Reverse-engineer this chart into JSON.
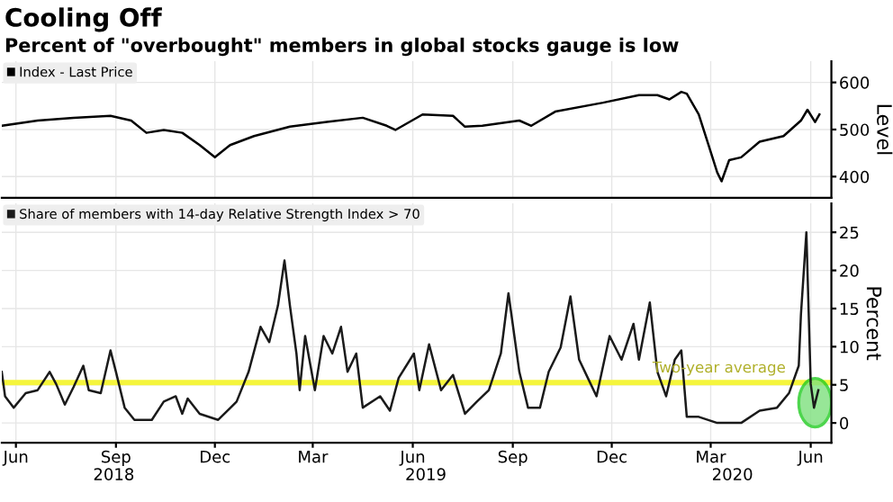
{
  "chart_data": [
    {
      "type": "line",
      "title": "Cooling Off",
      "subtitle": "Percent of \"overbought\" members in global stocks gauge is low",
      "ylabel": "Level",
      "legend": "top left",
      "grid": true,
      "tick_labels": "y",
      "line_style": "solid",
      "xlim": [
        "2018-05-19",
        "2020-06-20"
      ],
      "ylim": [
        355,
        645
      ],
      "yticks": [
        400,
        500,
        600
      ],
      "series": [
        {
          "name": "Index - Last Price",
          "color": "#000000",
          "x": [
            "2018-05-19",
            "2018-06-21",
            "2018-07-24",
            "2018-08-27",
            "2018-09-15",
            "2018-09-29",
            "2018-10-15",
            "2018-11-01",
            "2018-11-17",
            "2018-12-01",
            "2018-12-15",
            "2019-01-06",
            "2019-02-08",
            "2019-03-14",
            "2019-04-16",
            "2019-05-08",
            "2019-05-16",
            "2019-06-10",
            "2019-07-08",
            "2019-07-19",
            "2019-08-04",
            "2019-09-07",
            "2019-09-18",
            "2019-10-10",
            "2019-11-23",
            "2019-12-26",
            "2020-01-12",
            "2020-01-23",
            "2020-02-03",
            "2020-02-08",
            "2020-02-19",
            "2020-02-28",
            "2020-03-07",
            "2020-03-11",
            "2020-03-18",
            "2020-03-29",
            "2020-04-15",
            "2020-05-07",
            "2020-05-23",
            "2020-05-29",
            "2020-06-05",
            "2020-06-09"
          ],
          "values": [
            508,
            519,
            525,
            529,
            519,
            493,
            499,
            493,
            467,
            441,
            467,
            486,
            506,
            516,
            525,
            508,
            499,
            532,
            529,
            506,
            508,
            519,
            508,
            538,
            557,
            573,
            573,
            564,
            580,
            576,
            532,
            467,
            409,
            390,
            435,
            441,
            474,
            486,
            519,
            542,
            516,
            532
          ]
        }
      ]
    },
    {
      "type": "line",
      "ylabel": "Percent",
      "legend": "top left",
      "grid": true,
      "line_style": "solid",
      "xlim": [
        "2018-05-19",
        "2020-06-20"
      ],
      "ylim": [
        -2.6,
        28.8
      ],
      "yticks": [
        0,
        5,
        10,
        15,
        20,
        25
      ],
      "xticks": [
        {
          "value": "2018-06-01",
          "label": "Jun"
        },
        {
          "value": "2018-09-01",
          "label": "Sep"
        },
        {
          "value": "2018-12-01",
          "label": "Dec"
        },
        {
          "value": "2019-03-01",
          "label": "Mar"
        },
        {
          "value": "2019-06-01",
          "label": "Jun"
        },
        {
          "value": "2019-09-01",
          "label": "Sep"
        },
        {
          "value": "2019-12-01",
          "label": "Dec"
        },
        {
          "value": "2020-03-01",
          "label": "Mar"
        },
        {
          "value": "2020-06-01",
          "label": "Jun"
        }
      ],
      "x2lim": [
        "2018-05-19",
        "2020-06-20"
      ],
      "x2ticks": [
        {
          "value": "2018-08-30",
          "label": "2018"
        },
        {
          "value": "2019-06-13",
          "label": "2019"
        },
        {
          "value": "2020-03-21",
          "label": "2020"
        }
      ],
      "ref_lines": [
        {
          "axis": "y",
          "value": 5.3,
          "label": "Two-year average",
          "color": "#f5f53c"
        }
      ],
      "series": [
        {
          "name": "Share of members with 14-day Relative Strength Index > 70",
          "color": "#1a1a1a",
          "x": [
            "2018-05-19",
            "2018-05-22",
            "2018-05-30",
            "2018-06-10",
            "2018-06-21",
            "2018-07-02",
            "2018-07-08",
            "2018-07-16",
            "2018-07-24",
            "2018-08-02",
            "2018-08-07",
            "2018-08-18",
            "2018-08-27",
            "2018-09-01",
            "2018-09-09",
            "2018-09-18",
            "2018-10-04",
            "2018-10-15",
            "2018-10-26",
            "2018-11-01",
            "2018-11-06",
            "2018-11-17",
            "2018-12-04",
            "2018-12-21",
            "2019-01-01",
            "2019-01-12",
            "2019-01-20",
            "2019-01-28",
            "2019-02-03",
            "2019-02-08",
            "2019-02-14",
            "2019-02-17",
            "2019-02-22",
            "2019-03-03",
            "2019-03-11",
            "2019-03-19",
            "2019-03-27",
            "2019-04-02",
            "2019-04-10",
            "2019-04-16",
            "2019-05-02",
            "2019-05-11",
            "2019-05-19",
            "2019-06-02",
            "2019-06-07",
            "2019-06-16",
            "2019-06-27",
            "2019-07-08",
            "2019-07-19",
            "2019-07-30",
            "2019-08-10",
            "2019-08-21",
            "2019-08-28",
            "2019-09-07",
            "2019-09-15",
            "2019-09-26",
            "2019-10-04",
            "2019-10-15",
            "2019-10-24",
            "2019-11-01",
            "2019-11-09",
            "2019-11-17",
            "2019-11-29",
            "2019-12-10",
            "2019-12-21",
            "2019-12-26",
            "2020-01-05",
            "2020-01-12",
            "2020-01-20",
            "2020-01-28",
            "2020-02-03",
            "2020-02-08",
            "2020-02-19",
            "2020-03-07",
            "2020-03-29",
            "2020-04-15",
            "2020-05-01",
            "2020-05-12",
            "2020-05-21",
            "2020-05-23",
            "2020-05-28",
            "2020-06-01",
            "2020-06-04",
            "2020-06-08"
          ],
          "values": [
            6.7,
            3.5,
            2.0,
            3.9,
            4.3,
            6.7,
            5.1,
            2.4,
            4.7,
            7.5,
            4.3,
            3.9,
            9.5,
            6.7,
            2.0,
            0.4,
            0.4,
            2.8,
            3.5,
            1.2,
            3.2,
            1.2,
            0.4,
            2.8,
            6.7,
            12.6,
            10.6,
            15.4,
            21.3,
            15.4,
            9.1,
            4.3,
            11.4,
            4.3,
            11.4,
            9.1,
            12.6,
            6.7,
            9.1,
            2.0,
            3.5,
            1.6,
            5.9,
            9.1,
            4.3,
            10.3,
            4.3,
            6.3,
            1.2,
            2.8,
            4.3,
            9.1,
            17.0,
            6.7,
            2.0,
            2.0,
            6.7,
            9.9,
            16.6,
            8.3,
            5.9,
            3.5,
            11.4,
            8.3,
            13.0,
            8.3,
            15.8,
            6.7,
            3.5,
            8.3,
            9.5,
            0.8,
            0.8,
            0.0,
            0.0,
            1.6,
            2.0,
            3.9,
            7.5,
            14.2,
            25.0,
            5.1,
            2.0,
            4.3
          ]
        }
      ]
    }
  ]
}
